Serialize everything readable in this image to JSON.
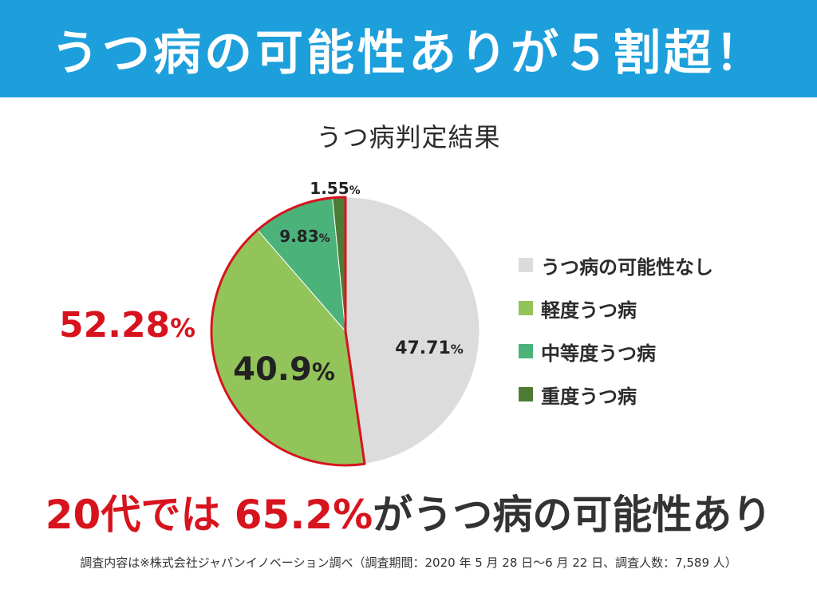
{
  "banner": {
    "text": "うつ病の可能性ありが５割超！"
  },
  "bottom": {
    "red_text": "20代では 65.2%",
    "dark_text": "がうつ病の可能性あり"
  },
  "footnote": "調査内容は※株式会社ジャパンイノベーション調べ（調査期間：2020 年 5 月 28 日〜6 月 22 日、調査人数：7,589 人）",
  "total_label": {
    "value": "52.28",
    "unit": "%"
  },
  "colors": {
    "banner": "#1d9fdc",
    "none": "#dcdcdc",
    "mild": "#92c45a",
    "moderate": "#4bb27a",
    "severe": "#4e7b34",
    "highlight_red": "#d7141e"
  },
  "chart_data": {
    "type": "pie",
    "title": "うつ病判定結果",
    "slices": [
      {
        "name": "うつ病の可能性なし",
        "value": 47.71,
        "label": "47.71",
        "unit": "%",
        "color": "#dcdcdc"
      },
      {
        "name": "軽度うつ病",
        "value": 40.9,
        "label": "40.9",
        "unit": "%",
        "color": "#92c45a"
      },
      {
        "name": "中等度うつ病",
        "value": 9.83,
        "label": "9.83",
        "unit": "%",
        "color": "#4bb27a"
      },
      {
        "name": "重度うつ病",
        "value": 1.55,
        "label": "1.55",
        "unit": "%",
        "color": "#4e7b34"
      }
    ],
    "legend_position": "right",
    "highlighted_group": {
      "slices": [
        "軽度うつ病",
        "中等度うつ病",
        "重度うつ病"
      ],
      "total": 52.28,
      "outline_color": "#d7141e"
    }
  }
}
